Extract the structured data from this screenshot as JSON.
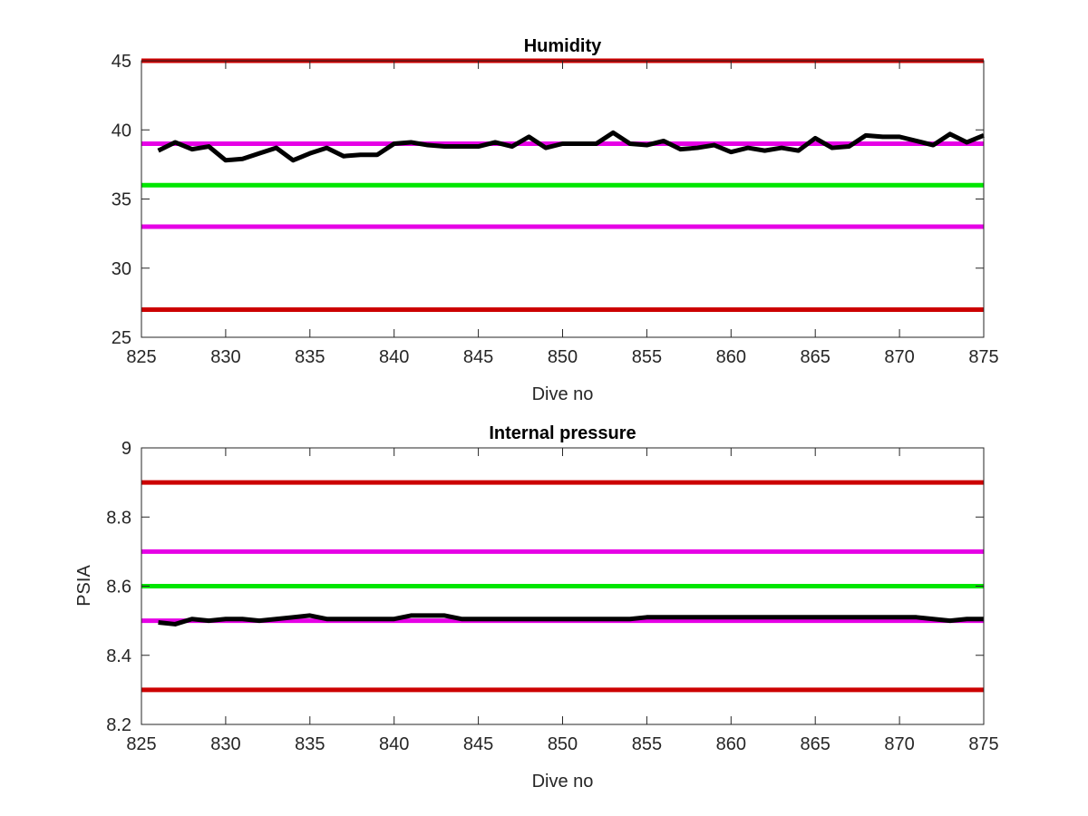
{
  "chart_data": [
    {
      "type": "line",
      "title": "Humidity",
      "xlabel": "Dive no",
      "ylabel": "",
      "xlim": [
        825,
        875
      ],
      "ylim": [
        25,
        45
      ],
      "xticks": [
        825,
        830,
        835,
        840,
        845,
        850,
        855,
        860,
        865,
        870,
        875
      ],
      "yticks": [
        25,
        30,
        35,
        40,
        45
      ],
      "grid": false,
      "series": [
        {
          "color": "#000000",
          "x": [
            826,
            827,
            828,
            829,
            830,
            831,
            832,
            833,
            834,
            835,
            836,
            837,
            838,
            839,
            840,
            841,
            842,
            843,
            844,
            845,
            846,
            847,
            848,
            849,
            850,
            851,
            852,
            853,
            854,
            855,
            856,
            857,
            858,
            859,
            860,
            861,
            862,
            863,
            864,
            865,
            866,
            867,
            868,
            869,
            870,
            871,
            872,
            873,
            874,
            875
          ],
          "y": [
            38.5,
            39.1,
            38.6,
            38.8,
            37.8,
            37.9,
            38.3,
            38.7,
            37.8,
            38.3,
            38.7,
            38.1,
            38.2,
            38.2,
            39.0,
            39.1,
            38.9,
            38.8,
            38.8,
            38.8,
            39.1,
            38.8,
            39.5,
            38.7,
            39.0,
            39.0,
            39.0,
            39.8,
            39.0,
            38.9,
            39.2,
            38.6,
            38.7,
            38.9,
            38.4,
            38.7,
            38.5,
            38.7,
            38.5,
            39.4,
            38.7,
            38.8,
            39.6,
            39.5,
            39.5,
            39.2,
            38.9,
            39.7,
            39.1,
            39.6
          ]
        }
      ],
      "reference_lines": [
        {
          "y": 45,
          "color": "#cc0000"
        },
        {
          "y": 39,
          "color": "#e600e6"
        },
        {
          "y": 36,
          "color": "#00e600"
        },
        {
          "y": 33,
          "color": "#e600e6"
        },
        {
          "y": 27,
          "color": "#cc0000"
        }
      ]
    },
    {
      "type": "line",
      "title": "Internal pressure",
      "xlabel": "Dive no",
      "ylabel": "PSIA",
      "xlim": [
        825,
        875
      ],
      "ylim": [
        8.2,
        9
      ],
      "xticks": [
        825,
        830,
        835,
        840,
        845,
        850,
        855,
        860,
        865,
        870,
        875
      ],
      "yticks": [
        8.2,
        8.4,
        8.6,
        8.8,
        9
      ],
      "grid": false,
      "series": [
        {
          "color": "#000000",
          "x": [
            826,
            827,
            828,
            829,
            830,
            831,
            832,
            833,
            834,
            835,
            836,
            837,
            838,
            839,
            840,
            841,
            842,
            843,
            844,
            845,
            846,
            847,
            848,
            849,
            850,
            851,
            852,
            853,
            854,
            855,
            856,
            857,
            858,
            859,
            860,
            861,
            862,
            863,
            864,
            865,
            866,
            867,
            868,
            869,
            870,
            871,
            872,
            873,
            874,
            875
          ],
          "y": [
            8.495,
            8.49,
            8.505,
            8.5,
            8.505,
            8.505,
            8.5,
            8.505,
            8.51,
            8.515,
            8.505,
            8.505,
            8.505,
            8.505,
            8.505,
            8.515,
            8.515,
            8.515,
            8.505,
            8.505,
            8.505,
            8.505,
            8.505,
            8.505,
            8.505,
            8.505,
            8.505,
            8.505,
            8.505,
            8.51,
            8.51,
            8.51,
            8.51,
            8.51,
            8.51,
            8.51,
            8.51,
            8.51,
            8.51,
            8.51,
            8.51,
            8.51,
            8.51,
            8.51,
            8.51,
            8.51,
            8.505,
            8.5,
            8.505,
            8.505
          ]
        }
      ],
      "reference_lines": [
        {
          "y": 8.9,
          "color": "#cc0000"
        },
        {
          "y": 8.7,
          "color": "#e600e6"
        },
        {
          "y": 8.6,
          "color": "#00e600"
        },
        {
          "y": 8.5,
          "color": "#e600e6"
        },
        {
          "y": 8.3,
          "color": "#cc0000"
        }
      ]
    }
  ]
}
